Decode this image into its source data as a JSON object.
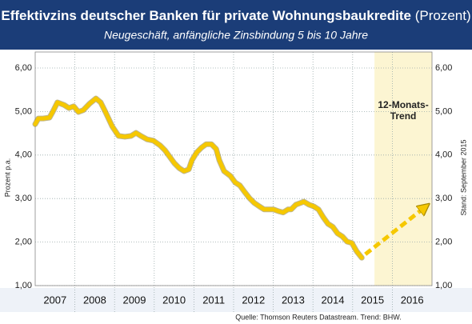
{
  "chart_data": {
    "type": "line",
    "title": "Effektivzins deutscher Banken für private Wohnungsbaukredite",
    "title_suffix": "(Prozent)",
    "subtitle": "Neugeschäft, anfängliche Zinsbindung 5 bis 10 Jahre",
    "y_label": "Prozent p.a.",
    "y2_label": "Stand: September 2015",
    "source": "Quelle: Thomson Reuters Datastream. Trend: BHW.",
    "xlim": [
      2007,
      2017
    ],
    "xticks": [
      {
        "value": 2007.5,
        "label": "2007"
      },
      {
        "value": 2008.5,
        "label": "2008"
      },
      {
        "value": 2009.5,
        "label": "2009"
      },
      {
        "value": 2010.5,
        "label": "2010"
      },
      {
        "value": 2011.5,
        "label": "2011"
      },
      {
        "value": 2012.5,
        "label": "2012"
      },
      {
        "value": 2013.5,
        "label": "2013"
      },
      {
        "value": 2014.5,
        "label": "2014"
      },
      {
        "value": 2015.5,
        "label": "2015"
      },
      {
        "value": 2016.5,
        "label": "2016"
      }
    ],
    "ylim": [
      1,
      6
    ],
    "yticks": [
      {
        "value": 1,
        "label": "1,00"
      },
      {
        "value": 2,
        "label": "2,00"
      },
      {
        "value": 3,
        "label": "3,00"
      },
      {
        "value": 4,
        "label": "4,00"
      },
      {
        "value": 5,
        "label": "5,00"
      },
      {
        "value": 6,
        "label": "6,00"
      }
    ],
    "y2lim": [
      1,
      6
    ],
    "y2ticks": [
      {
        "value": 1,
        "label": "1,00"
      },
      {
        "value": 2,
        "label": "2,00"
      },
      {
        "value": 3,
        "label": "3,00"
      },
      {
        "value": 4,
        "label": "4,00"
      },
      {
        "value": 5,
        "label": "5,00"
      },
      {
        "value": 6,
        "label": "6,00"
      }
    ],
    "grid": true,
    "trend_region": {
      "xlim": [
        2015.55,
        2017
      ],
      "label_lines": [
        "12-Monats-",
        "Trend"
      ],
      "color": "#fcf5d2"
    },
    "series": [
      {
        "color": "#f6c800",
        "style": "solid",
        "x": [
          2007.0,
          2007.08,
          2007.2,
          2007.36,
          2007.44,
          2007.56,
          2007.73,
          2007.85,
          2007.97,
          2008.09,
          2008.21,
          2008.37,
          2008.53,
          2008.65,
          2008.77,
          2008.94,
          2009.1,
          2009.26,
          2009.42,
          2009.54,
          2009.66,
          2009.82,
          2009.98,
          2010.15,
          2010.27,
          2010.39,
          2010.51,
          2010.63,
          2010.75,
          2010.87,
          2010.95,
          2011.07,
          2011.19,
          2011.31,
          2011.44,
          2011.56,
          2011.64,
          2011.76,
          2011.92,
          2012.04,
          2012.16,
          2012.28,
          2012.4,
          2012.52,
          2012.65,
          2012.77,
          2012.89,
          2013.01,
          2013.13,
          2013.25,
          2013.37,
          2013.45,
          2013.57,
          2013.69,
          2013.77,
          2013.9,
          2014.02,
          2014.14,
          2014.26,
          2014.38,
          2014.5,
          2014.62,
          2014.74,
          2014.86,
          2014.98,
          2015.1,
          2015.23
        ],
        "values": [
          4.71,
          4.84,
          4.84,
          4.86,
          4.99,
          5.21,
          5.15,
          5.08,
          5.12,
          4.99,
          5.03,
          5.18,
          5.3,
          5.21,
          4.99,
          4.66,
          4.44,
          4.42,
          4.44,
          4.51,
          4.44,
          4.36,
          4.33,
          4.22,
          4.11,
          3.96,
          3.81,
          3.7,
          3.63,
          3.67,
          3.88,
          4.06,
          4.17,
          4.25,
          4.25,
          4.14,
          3.88,
          3.63,
          3.52,
          3.37,
          3.3,
          3.15,
          3.01,
          2.9,
          2.82,
          2.75,
          2.75,
          2.75,
          2.71,
          2.68,
          2.75,
          2.75,
          2.86,
          2.9,
          2.93,
          2.86,
          2.82,
          2.75,
          2.57,
          2.42,
          2.35,
          2.2,
          2.13,
          2.01,
          1.98,
          1.79,
          1.64
        ]
      },
      {
        "color": "#f6c800",
        "style": "dashed-arrow",
        "x": [
          2015.32,
          2016.82
        ],
        "values": [
          1.72,
          2.8
        ]
      }
    ]
  }
}
